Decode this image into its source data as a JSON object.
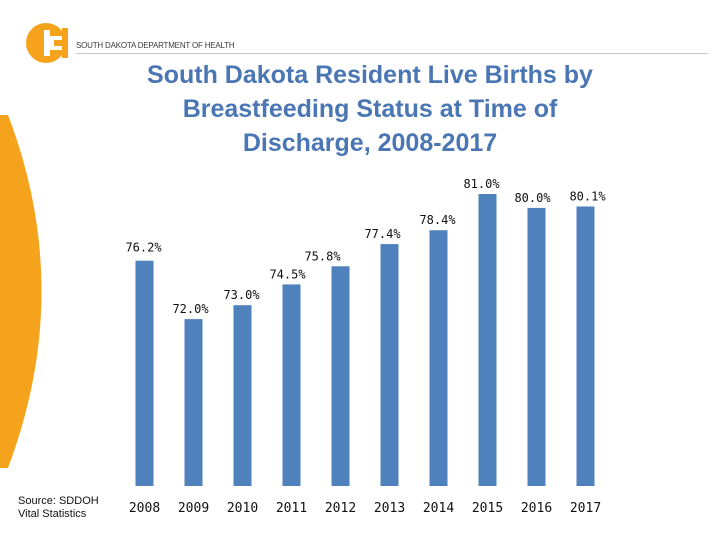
{
  "header": {
    "org_name": "SOUTH DAKOTA DEPARTMENT OF HEALTH",
    "logo_icon": "sd-doh-logo-icon",
    "brand_orange": "#f5a21d",
    "brand_rule": "#c8c8c8"
  },
  "source": {
    "line1": "Source: SDDOH",
    "line2": "Vital Statistics"
  },
  "chart_data": {
    "type": "bar",
    "title": "South Dakota Resident Live Births by Breastfeeding Status at Time of Discharge, 2008-2017",
    "xlabel": "",
    "ylabel": "",
    "categories": [
      "2008",
      "2009",
      "2010",
      "2011",
      "2012",
      "2013",
      "2014",
      "2015",
      "2016",
      "2017"
    ],
    "values": [
      76.2,
      72.0,
      73.0,
      74.5,
      75.8,
      77.4,
      78.4,
      81.0,
      80.0,
      80.1
    ],
    "value_labels": [
      "76.2%",
      "72.0%",
      "73.0%",
      "74.5%",
      "75.8%",
      "77.4%",
      "78.4%",
      "81.0%",
      "80.0%",
      "80.1%"
    ],
    "ylim": [
      60,
      82
    ],
    "grid": false,
    "bar_color": "#4f81bd"
  }
}
